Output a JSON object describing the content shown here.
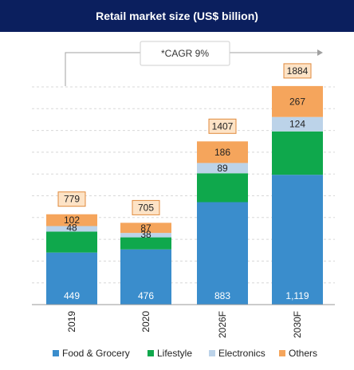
{
  "chart_data": {
    "type": "bar",
    "stacked": true,
    "title": "Retail market size (US$ billion)",
    "categories": [
      "2019",
      "2020",
      "2026F",
      "2030F"
    ],
    "series": [
      {
        "name": "Food & Grocery",
        "color": "#3a8dcc",
        "values": [
          449,
          476,
          883,
          1119
        ],
        "labels": [
          "449",
          "476",
          "883",
          "1,119"
        ]
      },
      {
        "name": "Lifestyle",
        "color": "#0fa84c",
        "values": [
          180,
          104,
          249,
          374
        ],
        "labels": [
          "",
          "",
          "",
          ""
        ]
      },
      {
        "name": "Electronics",
        "color": "#bcd3e9",
        "values": [
          48,
          38,
          89,
          124
        ],
        "labels": [
          "48",
          "38",
          "89",
          "124"
        ]
      },
      {
        "name": "Others",
        "color": "#f5a55c",
        "values": [
          102,
          87,
          186,
          267
        ],
        "labels": [
          "102",
          "87",
          "186",
          "267"
        ]
      }
    ],
    "totals": [
      "779",
      "705",
      "1407",
      "1884"
    ],
    "annotation": "*CAGR 9%",
    "legend_position": "bottom",
    "ylim": [
      0,
      2000
    ],
    "grid": true,
    "gridline_style": "dashed"
  }
}
